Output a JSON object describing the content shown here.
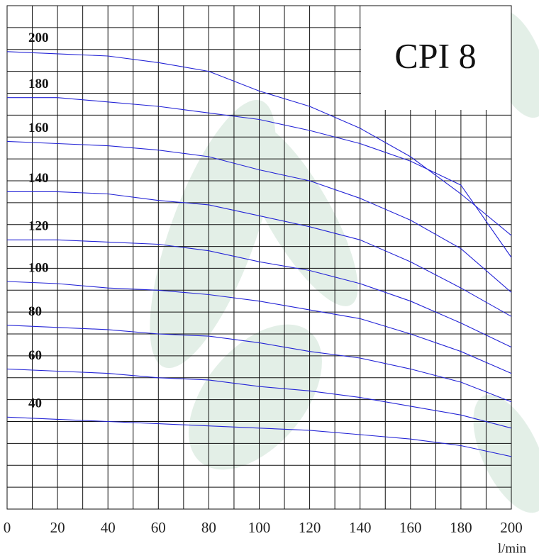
{
  "chart_data": {
    "type": "line",
    "title": "CPI 8",
    "x_label": "l/min",
    "x": [
      0,
      20,
      40,
      60,
      80,
      100,
      120,
      140,
      160,
      180,
      200
    ],
    "xlim": [
      0,
      200
    ],
    "xticks": [
      0,
      20,
      40,
      60,
      80,
      100,
      120,
      140,
      160,
      180,
      200
    ],
    "ylim": [
      0,
      230
    ],
    "grid": true,
    "series": [
      {
        "name": "200",
        "color": "#2424d6",
        "values": [
          209,
          208,
          207,
          204,
          200,
          191,
          184,
          174,
          161,
          144,
          125
        ]
      },
      {
        "name": "180",
        "color": "#2424d6",
        "values": [
          188,
          188,
          186,
          184,
          181,
          178,
          173,
          167,
          159,
          148,
          115
        ]
      },
      {
        "name": "160",
        "color": "#2424d6",
        "values": [
          168,
          167,
          166,
          164,
          161,
          155,
          150,
          142,
          132,
          119,
          99
        ]
      },
      {
        "name": "140",
        "color": "#2424d6",
        "values": [
          145,
          145,
          144,
          141,
          139,
          134,
          129,
          123,
          113,
          101,
          88
        ]
      },
      {
        "name": "120",
        "color": "#2424d6",
        "values": [
          123,
          123,
          122,
          121,
          118,
          113,
          109,
          103,
          95,
          85,
          74
        ]
      },
      {
        "name": "100",
        "color": "#2424d6",
        "values": [
          104,
          103,
          101,
          100,
          98,
          95,
          91,
          87,
          80,
          72,
          62
        ]
      },
      {
        "name": "80",
        "color": "#2424d6",
        "values": [
          84,
          83,
          82,
          80,
          79,
          76,
          72,
          69,
          64,
          58,
          49
        ]
      },
      {
        "name": "60",
        "color": "#2424d6",
        "values": [
          64,
          63,
          62,
          60,
          59,
          56,
          54,
          51,
          47,
          43,
          37
        ]
      },
      {
        "name": "40",
        "color": "#2424d6",
        "values": [
          42,
          41,
          40,
          39,
          38,
          37,
          36,
          34,
          32,
          29,
          24
        ]
      }
    ]
  }
}
